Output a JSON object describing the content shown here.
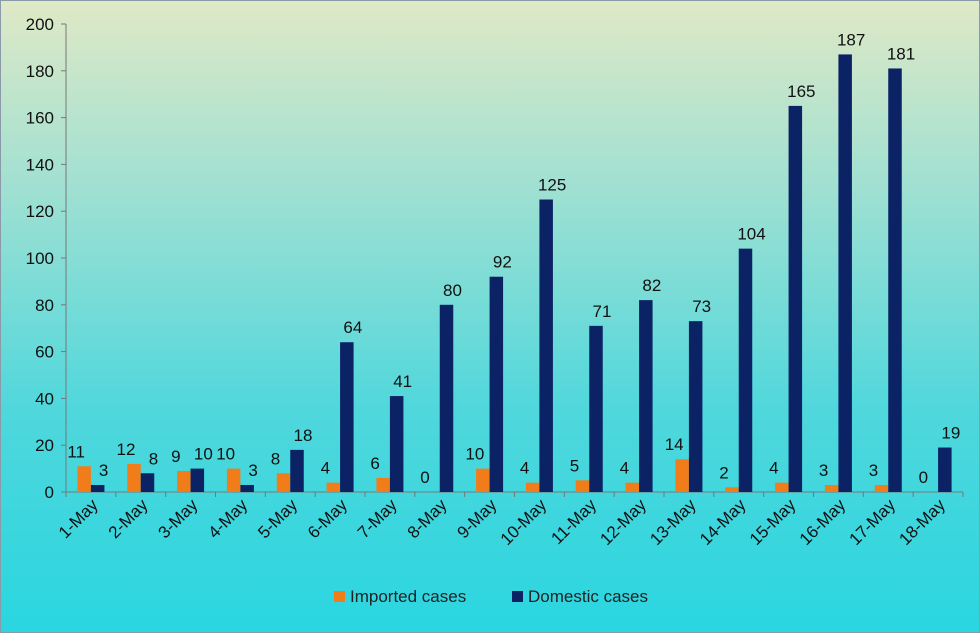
{
  "chart_data": {
    "type": "bar",
    "categories": [
      "1-May",
      "2-May",
      "3-May",
      "4-May",
      "5-May",
      "6-May",
      "7-May",
      "8-May",
      "9-May",
      "10-May",
      "11-May",
      "12-May",
      "13-May",
      "14-May",
      "15-May",
      "16-May",
      "17-May",
      "18-May"
    ],
    "series": [
      {
        "name": "Imported cases",
        "color": "#f07d1a",
        "values": [
          11,
          12,
          9,
          10,
          8,
          4,
          6,
          0,
          10,
          4,
          5,
          4,
          14,
          2,
          4,
          3,
          3,
          0
        ]
      },
      {
        "name": "Domestic cases",
        "color": "#0b2265",
        "values": [
          3,
          8,
          10,
          3,
          18,
          64,
          41,
          80,
          92,
          125,
          71,
          82,
          73,
          104,
          165,
          187,
          181,
          19
        ]
      }
    ],
    "title": "",
    "xlabel": "",
    "ylabel": "",
    "ylim": [
      0,
      200
    ],
    "yticks": [
      0,
      20,
      40,
      60,
      80,
      100,
      120,
      140,
      160,
      180,
      200
    ],
    "grid": false,
    "legend_position": "bottom"
  }
}
